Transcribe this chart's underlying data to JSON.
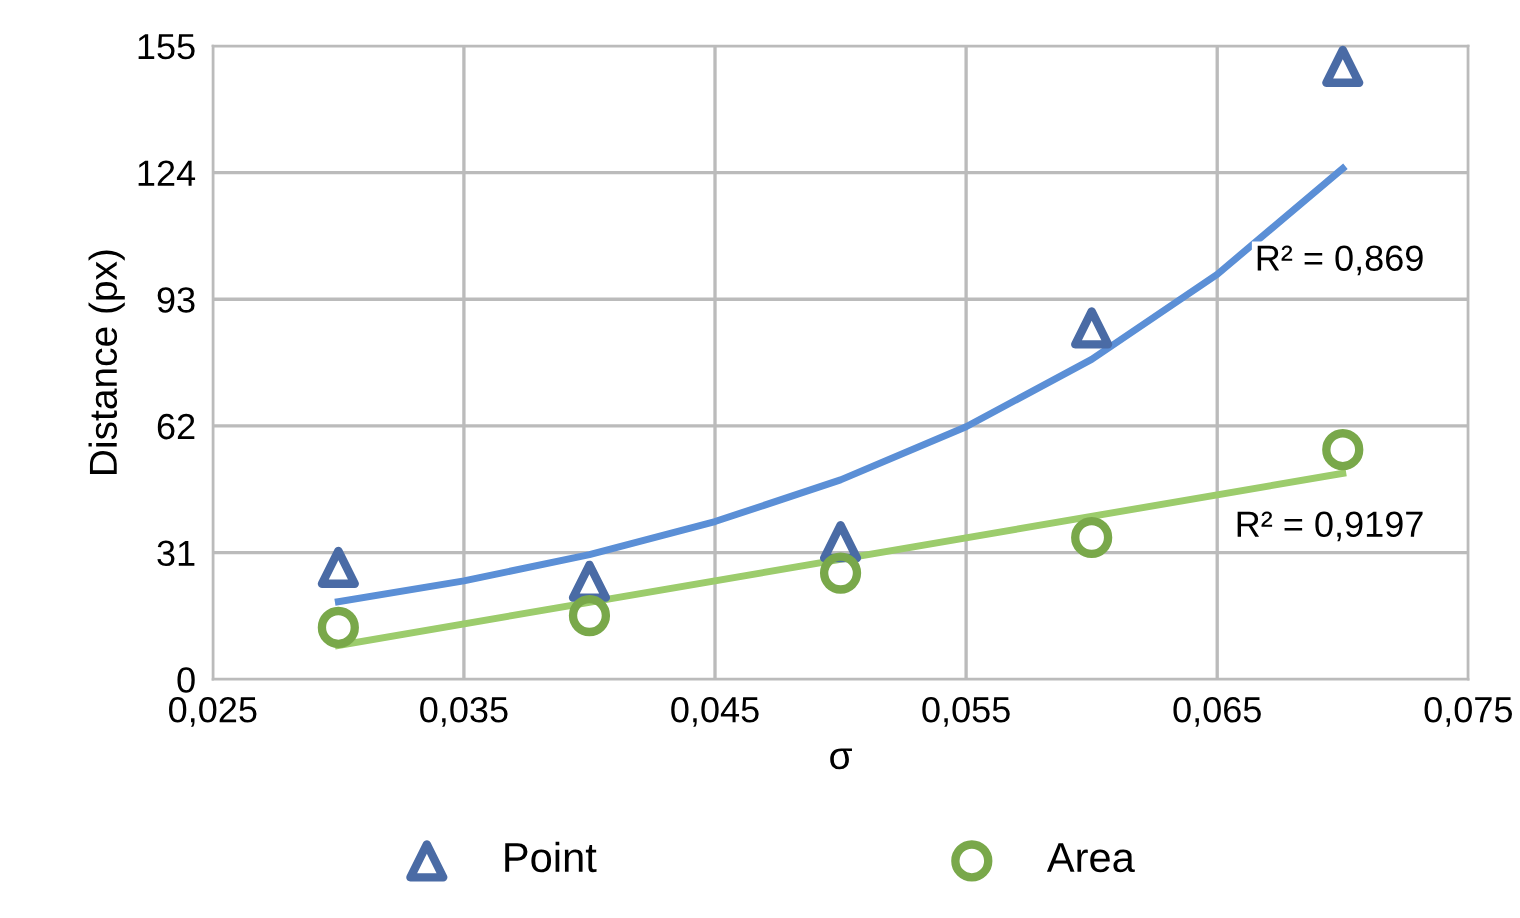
{
  "chart_data": {
    "type": "scatter",
    "xlabel": "σ",
    "ylabel": "Distance (px)",
    "x": [
      0.03,
      0.04,
      0.05,
      0.06,
      0.07
    ],
    "series": [
      {
        "name": "Point",
        "color": "#4a6ba5",
        "marker": "triangle",
        "values": [
          27.4,
          24,
          33.7,
          86,
          150
        ]
      },
      {
        "name": "Area",
        "color": "#79a84a",
        "marker": "circle",
        "values": [
          12.7,
          15.6,
          26,
          34.7,
          56.2
        ]
      },
      {
        "type": "line",
        "color": "#5b8fd6",
        "x": [
          0.03,
          0.035,
          0.04,
          0.045,
          0.05,
          0.055,
          0.06,
          0.065,
          0.07
        ],
        "values": [
          19,
          24.1,
          30.5,
          38.6,
          48.8,
          61.8,
          78.3,
          99.1,
          125
        ]
      },
      {
        "type": "line",
        "color": "#9ccc6c",
        "x": [
          0.03,
          0.07
        ],
        "values": [
          8.3,
          50.4
        ]
      }
    ],
    "annotations": [
      "R² = 0,869",
      "R² = 0,9197"
    ],
    "xlim": [
      0.025,
      0.075
    ],
    "xticks": [
      {
        "value": 0.025,
        "label": "0,025"
      },
      {
        "value": 0.035,
        "label": "0,035"
      },
      {
        "value": 0.045,
        "label": "0,045"
      },
      {
        "value": 0.055,
        "label": "0,055"
      },
      {
        "value": 0.065,
        "label": "0,065"
      },
      {
        "value": 0.075,
        "label": "0,075"
      }
    ],
    "ylim": [
      0,
      155
    ],
    "yticks": [
      0,
      31,
      62,
      93,
      124,
      155
    ],
    "grid": true,
    "legend": "bottom"
  }
}
